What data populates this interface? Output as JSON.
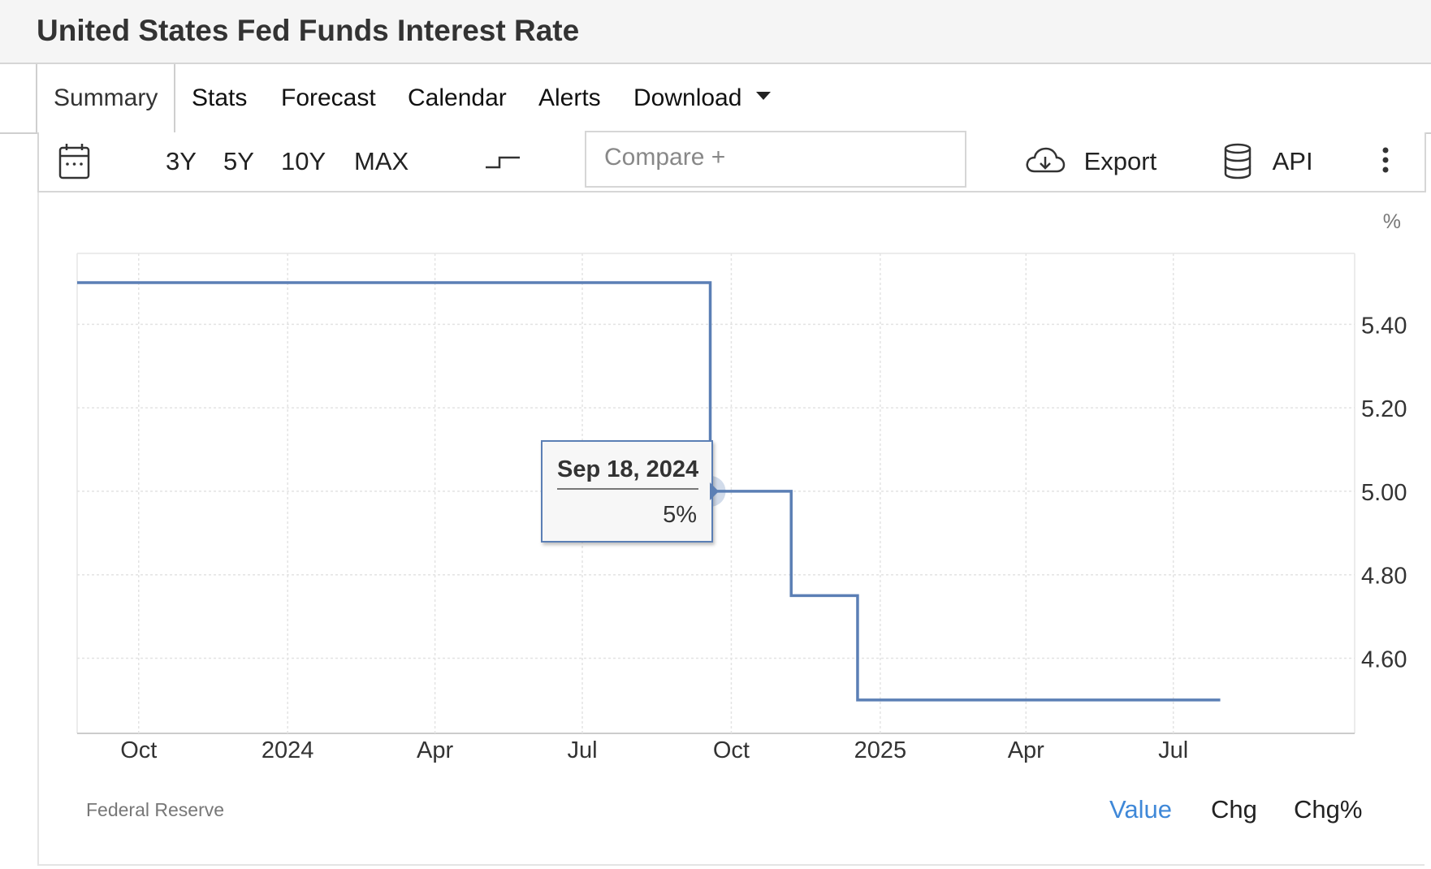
{
  "page": {
    "title": "United States Fed Funds Interest Rate"
  },
  "tabs": [
    {
      "label": "Summary",
      "active": true
    },
    {
      "label": "Stats"
    },
    {
      "label": "Forecast"
    },
    {
      "label": "Calendar"
    },
    {
      "label": "Alerts"
    },
    {
      "label": "Download",
      "dropdown": true
    }
  ],
  "toolbar": {
    "ranges": [
      "3Y",
      "5Y",
      "10Y",
      "MAX"
    ],
    "compare_placeholder": "Compare +",
    "export_label": "Export",
    "api_label": "API",
    "icons": [
      "calendar-icon",
      "step-line-icon",
      "cloud-download-icon",
      "database-icon",
      "more-vertical-icon"
    ]
  },
  "chart_data": {
    "type": "line",
    "step": true,
    "unit_label": "%",
    "y_ticks": [
      "5.40",
      "5.20",
      "5.00",
      "4.80",
      "4.60"
    ],
    "x_ticks": [
      {
        "label": "Oct",
        "date": "2023-10-01"
      },
      {
        "label": "2024",
        "date": "2024-01-01"
      },
      {
        "label": "Apr",
        "date": "2024-04-01"
      },
      {
        "label": "Jul",
        "date": "2024-07-01"
      },
      {
        "label": "Oct",
        "date": "2024-10-01"
      },
      {
        "label": "2025",
        "date": "2025-01-01"
      },
      {
        "label": "Apr",
        "date": "2025-04-01"
      },
      {
        "label": "Jul",
        "date": "2025-07-01"
      }
    ],
    "xlim": [
      "2023-08-24",
      "2025-10-21"
    ],
    "ylim": [
      4.42,
      5.57
    ],
    "series": [
      {
        "color": "#5b7fb5",
        "points": [
          {
            "date": "2023-08-24",
            "value": 5.5
          },
          {
            "date": "2024-09-18",
            "value": 5.0
          },
          {
            "date": "2024-11-07",
            "value": 4.75
          },
          {
            "date": "2024-12-18",
            "value": 4.5
          },
          {
            "date": "2025-07-30",
            "value": 4.5
          }
        ]
      }
    ],
    "tooltip": {
      "date": "Sep 18, 2024",
      "value": "5%"
    },
    "grid": true,
    "source": "Federal Reserve"
  },
  "view_options": [
    {
      "label": "Value",
      "active": true
    },
    {
      "label": "Chg"
    },
    {
      "label": "Chg%"
    }
  ],
  "colors": {
    "line": "#5b7fb5",
    "active_option": "#3f88d8"
  }
}
